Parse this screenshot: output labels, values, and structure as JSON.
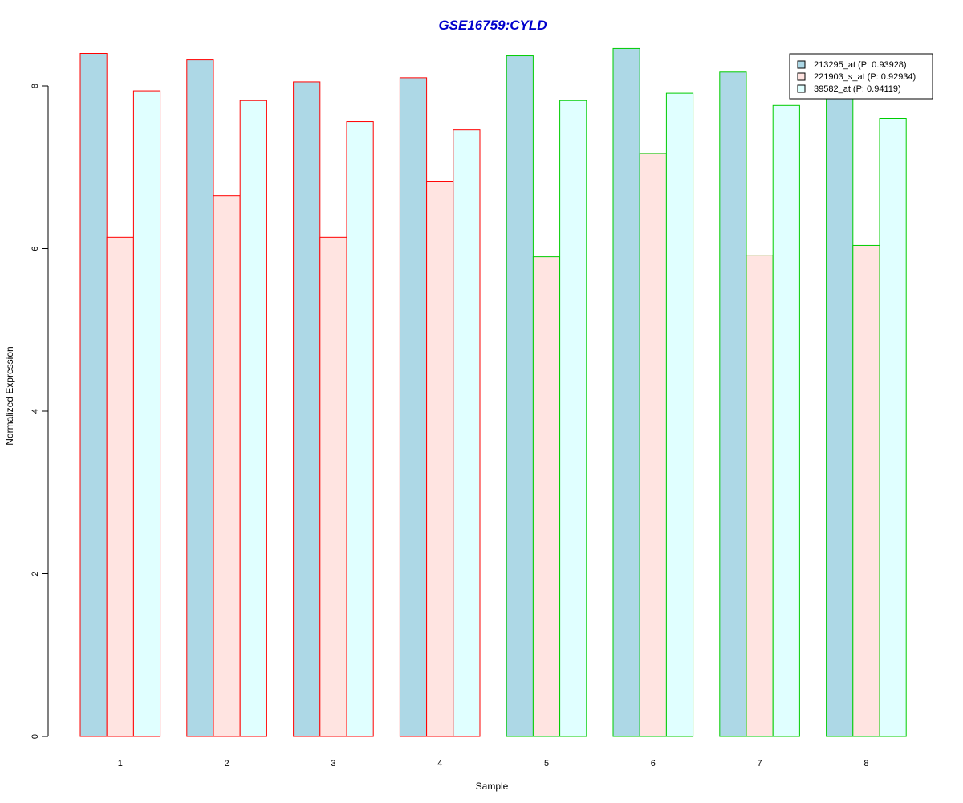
{
  "chart_data": {
    "type": "bar",
    "title": "GSE16759:CYLD",
    "xlabel": "Sample",
    "ylabel": "Normalized Expression",
    "categories": [
      "1",
      "2",
      "3",
      "4",
      "5",
      "6",
      "7",
      "8"
    ],
    "ylim": [
      0,
      8.4
    ],
    "yticks": [
      0,
      2,
      4,
      6,
      8
    ],
    "grid": false,
    "legend_position": "top-right",
    "series": [
      {
        "name": "213295_at (P: 0.93928)",
        "color": "#add8e6",
        "values": [
          8.4,
          8.32,
          8.05,
          8.1,
          8.37,
          8.46,
          8.17,
          7.9
        ]
      },
      {
        "name": "221903_s_at (P: 0.92934)",
        "color": "#ffe4e1",
        "values": [
          6.14,
          6.65,
          6.14,
          6.82,
          5.9,
          7.17,
          5.92,
          6.04
        ]
      },
      {
        "name": "39582_at (P: 0.94119)",
        "color": "#e0ffff",
        "values": [
          7.94,
          7.82,
          7.56,
          7.46,
          7.82,
          7.91,
          7.76,
          7.6
        ]
      }
    ],
    "group_border_colors": [
      "#ff0000",
      "#ff0000",
      "#ff0000",
      "#ff0000",
      "#00cc00",
      "#00cc00",
      "#00cc00",
      "#00cc00"
    ],
    "title_color": "#0000cc"
  }
}
